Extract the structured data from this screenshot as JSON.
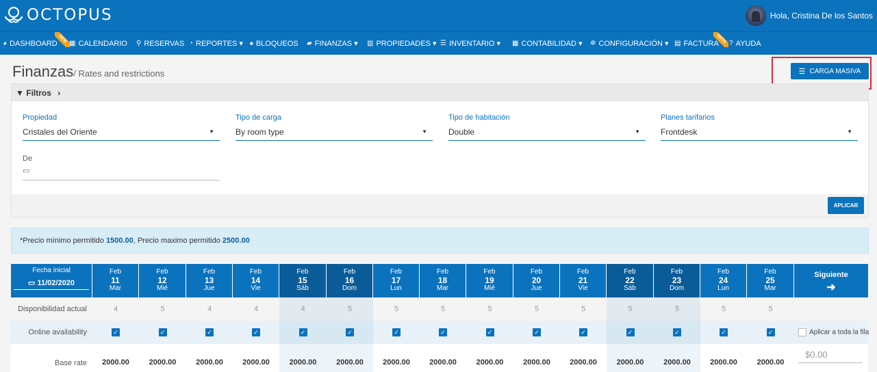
{
  "brand": {
    "name": "OCTOPUS",
    "logo_icon": "octopus-logo-icon"
  },
  "user": {
    "greeting": "Hola, Cristina De los Santos"
  },
  "nav": [
    {
      "label": "DASHBOARD",
      "icon": "dashboard-icon",
      "glyph": "◕",
      "badge": "NEW"
    },
    {
      "label": "CALENDARIO",
      "icon": "calendar-icon",
      "glyph": "▦"
    },
    {
      "label": "RESERVAS",
      "icon": "search-icon",
      "glyph": "⚲"
    },
    {
      "label": "REPORTES ▾",
      "icon": "pie-chart-icon",
      "glyph": "◔"
    },
    {
      "label": "BLOQUEOS",
      "icon": "lock-icon",
      "glyph": "🔒"
    },
    {
      "label": "FINANZAS ▾",
      "icon": "folder-icon",
      "glyph": "▰"
    },
    {
      "label": "PROPIEDADES ▾",
      "icon": "map-icon",
      "glyph": "▥"
    },
    {
      "label": "INVENTARIO ▾",
      "icon": "list-icon",
      "glyph": "☰"
    },
    {
      "label": "CONTABILIDAD ▾",
      "icon": "calculator-icon",
      "glyph": "▦"
    },
    {
      "label": "CONFIGURACIÓN ▾",
      "icon": "gear-icon",
      "glyph": "✲"
    },
    {
      "label": "FACTURA",
      "icon": "file-icon",
      "glyph": "▤",
      "badge": "BETA"
    },
    {
      "label": "AYUDA",
      "icon": "help-icon",
      "glyph": "?"
    }
  ],
  "page": {
    "title": "Finanzas",
    "subtitle": "/ Rates and restrictions",
    "bulk_button": "CARGA MASIVA"
  },
  "filters": {
    "header": "Filtros",
    "property": {
      "label": "Propiedad",
      "value": "Cristales del Oriente"
    },
    "load_type": {
      "label": "Tipo de carga",
      "value": "By room type"
    },
    "room_type": {
      "label": "Tipo de habitación",
      "value": "Double"
    },
    "rate_plans": {
      "label": "Planes tarifarios",
      "value": "Frontdesk"
    },
    "from": {
      "label": "De",
      "value": ""
    },
    "apply_button": "APLICAR"
  },
  "info": {
    "text_min": "*Precio mínimo permitido",
    "min": "1500.00",
    "text_max": ", Precio maximo permitido",
    "max": "2500.00"
  },
  "grid": {
    "start_label": "Fecha inicial",
    "start_date": "11/02/2020",
    "next_label": "Siguiente",
    "row_labels": {
      "availability": "Disponibilidad actual",
      "online": "Online availability",
      "base_rate": "Base rate"
    },
    "apply_all_label": "Aplicar a toda la fila",
    "base_rate_placeholder": "$0.00",
    "days": [
      {
        "month": "Feb",
        "day": "11",
        "dow": "Mar",
        "avail": "4",
        "online": true,
        "rate": "2000.00",
        "weekend": false
      },
      {
        "month": "Feb",
        "day": "12",
        "dow": "Mié",
        "avail": "5",
        "online": true,
        "rate": "2000.00",
        "weekend": false
      },
      {
        "month": "Feb",
        "day": "13",
        "dow": "Jue",
        "avail": "4",
        "online": true,
        "rate": "2000.00",
        "weekend": false
      },
      {
        "month": "Feb",
        "day": "14",
        "dow": "Vie",
        "avail": "4",
        "online": true,
        "rate": "2000.00",
        "weekend": false
      },
      {
        "month": "Feb",
        "day": "15",
        "dow": "Sáb",
        "avail": "4",
        "online": true,
        "rate": "2000.00",
        "weekend": true
      },
      {
        "month": "Feb",
        "day": "16",
        "dow": "Dom",
        "avail": "5",
        "online": true,
        "rate": "2000.00",
        "weekend": true
      },
      {
        "month": "Feb",
        "day": "17",
        "dow": "Lun",
        "avail": "5",
        "online": true,
        "rate": "2000.00",
        "weekend": false
      },
      {
        "month": "Feb",
        "day": "18",
        "dow": "Mar",
        "avail": "5",
        "online": true,
        "rate": "2000.00",
        "weekend": false
      },
      {
        "month": "Feb",
        "day": "19",
        "dow": "Mié",
        "avail": "5",
        "online": true,
        "rate": "2000.00",
        "weekend": false
      },
      {
        "month": "Feb",
        "day": "20",
        "dow": "Jue",
        "avail": "5",
        "online": true,
        "rate": "2000.00",
        "weekend": false
      },
      {
        "month": "Feb",
        "day": "21",
        "dow": "Vie",
        "avail": "5",
        "online": true,
        "rate": "2000.00",
        "weekend": false
      },
      {
        "month": "Feb",
        "day": "22",
        "dow": "Sáb",
        "avail": "5",
        "online": true,
        "rate": "2000.00",
        "weekend": true
      },
      {
        "month": "Feb",
        "day": "23",
        "dow": "Dom",
        "avail": "5",
        "online": true,
        "rate": "2000.00",
        "weekend": true
      },
      {
        "month": "Feb",
        "day": "24",
        "dow": "Lun",
        "avail": "5",
        "online": true,
        "rate": "2000.00",
        "weekend": false
      },
      {
        "month": "Feb",
        "day": "25",
        "dow": "Mar",
        "avail": "5",
        "online": true,
        "rate": "2000.00",
        "weekend": false
      }
    ]
  },
  "colors": {
    "primary": "#0b72bd",
    "highlight": "#e3262f",
    "badge": "#f5a21b"
  }
}
